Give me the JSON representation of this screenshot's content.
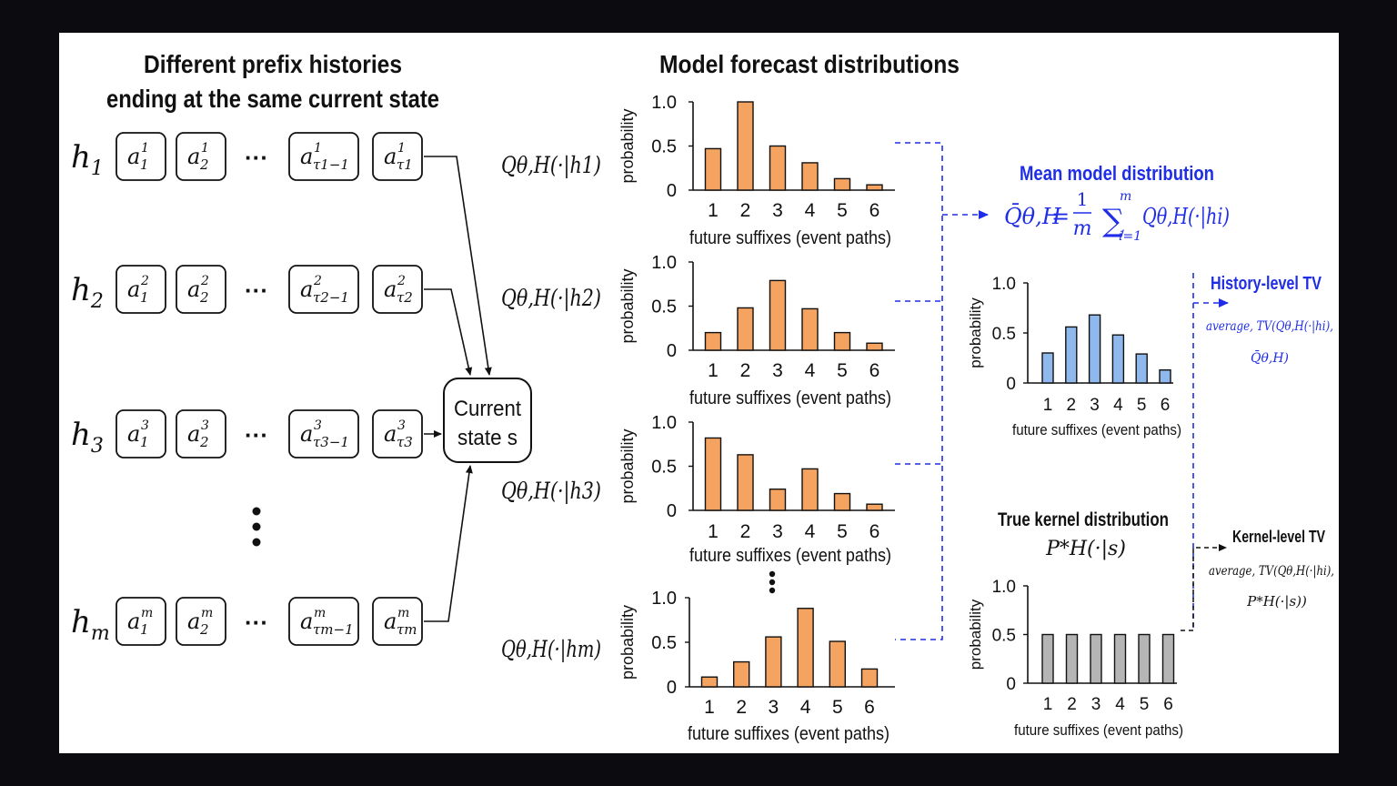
{
  "left_panel": {
    "title_line1": "Different prefix histories",
    "title_line2": "ending at the same current state",
    "histories": [
      {
        "label": "h",
        "sub": "1",
        "tokens": [
          {
            "base": "a",
            "sup": "1",
            "sub": "1"
          },
          {
            "base": "a",
            "sup": "1",
            "sub": "2"
          },
          {
            "base": "a",
            "sup": "1",
            "sub": "τ1−1"
          },
          {
            "base": "a",
            "sup": "1",
            "sub": "τ1"
          }
        ],
        "forecast": "Qθ,H(·|h1)"
      },
      {
        "label": "h",
        "sub": "2",
        "tokens": [
          {
            "base": "a",
            "sup": "2",
            "sub": "1"
          },
          {
            "base": "a",
            "sup": "2",
            "sub": "2"
          },
          {
            "base": "a",
            "sup": "2",
            "sub": "τ2−1"
          },
          {
            "base": "a",
            "sup": "2",
            "sub": "τ2"
          }
        ],
        "forecast": "Qθ,H(·|h2)"
      },
      {
        "label": "h",
        "sub": "3",
        "tokens": [
          {
            "base": "a",
            "sup": "3",
            "sub": "1"
          },
          {
            "base": "a",
            "sup": "3",
            "sub": "2"
          },
          {
            "base": "a",
            "sup": "3",
            "sub": "τ3−1"
          },
          {
            "base": "a",
            "sup": "3",
            "sub": "τ3"
          }
        ],
        "forecast": "Qθ,H(·|h3)"
      },
      {
        "label": "h",
        "sub": "m",
        "tokens": [
          {
            "base": "a",
            "sup": "m",
            "sub": "1"
          },
          {
            "base": "a",
            "sup": "m",
            "sub": "2"
          },
          {
            "base": "a",
            "sup": "m",
            "sub": "τm−1"
          },
          {
            "base": "a",
            "sup": "m",
            "sub": "τm"
          }
        ],
        "forecast": "Qθ,H(·|hm)"
      }
    ],
    "ellipsis": "···",
    "current_state_line1": "Current",
    "current_state_line2": "state s"
  },
  "middle_panel": {
    "title": "Model forecast distributions"
  },
  "right_panel": {
    "mean_title": "Mean model distribution",
    "mean_formula_lhs": "Q̄θ,H",
    "mean_formula_eq": "=",
    "mean_formula_frac_num": "1",
    "mean_formula_frac_den": "m",
    "mean_formula_sum": "∑",
    "mean_formula_sum_top": "m",
    "mean_formula_sum_bottom": "i=1",
    "mean_formula_term": "Qθ,H(·|hi)",
    "history_tv_title": "History-level TV",
    "history_tv_line1": "average, TV(Qθ,H(·|hi),",
    "history_tv_line2": "Q̄θ,H)",
    "kernel_title": "True kernel distribution",
    "kernel_formula": "P*H(·|s)",
    "kernel_tv_title": "Kernel-level TV",
    "kernel_tv_line1": "average, TV(Qθ,H(·|hi),",
    "kernel_tv_line2": "P*H(·|s))"
  },
  "colors": {
    "orange": "#f4a460",
    "blue": "#8fb8ec",
    "gray": "#b5b5b5",
    "accent_blue": "#1f2ee6",
    "ink": "#111111"
  },
  "chart_data": [
    {
      "type": "bar",
      "name_label": "history 1",
      "categories": [
        "1",
        "2",
        "3",
        "4",
        "5",
        "6"
      ],
      "values": [
        0.47,
        1.0,
        0.5,
        0.31,
        0.13,
        0.06
      ],
      "ylabel": "probability",
      "xlabel": "future suffixes (event paths)",
      "yticks": [
        "0",
        "0.5",
        "1.0"
      ],
      "ylim": [
        0,
        1.0
      ],
      "color": "#f4a460"
    },
    {
      "type": "bar",
      "name_label": "history 2",
      "categories": [
        "1",
        "2",
        "3",
        "4",
        "5",
        "6"
      ],
      "values": [
        0.2,
        0.48,
        0.79,
        0.47,
        0.2,
        0.08
      ],
      "ylabel": "probability",
      "xlabel": "future suffixes (event paths)",
      "yticks": [
        "0",
        "0.5",
        "1.0"
      ],
      "ylim": [
        0,
        1.0
      ],
      "color": "#f4a460"
    },
    {
      "type": "bar",
      "name_label": "history 3",
      "categories": [
        "1",
        "2",
        "3",
        "4",
        "5",
        "6"
      ],
      "values": [
        0.82,
        0.63,
        0.24,
        0.47,
        0.19,
        0.07
      ],
      "ylabel": "probability",
      "xlabel": "future suffixes (event paths)",
      "yticks": [
        "0",
        "0.5",
        "1.0"
      ],
      "ylim": [
        0,
        1.0
      ],
      "color": "#f4a460"
    },
    {
      "type": "bar",
      "name_label": "history m",
      "categories": [
        "1",
        "2",
        "3",
        "4",
        "5",
        "6"
      ],
      "values": [
        0.11,
        0.28,
        0.56,
        0.88,
        0.51,
        0.2
      ],
      "ylabel": "probability",
      "xlabel": "future suffixes (event paths)",
      "yticks": [
        "0",
        "0.5",
        "1.0"
      ],
      "ylim": [
        0,
        1.0
      ],
      "color": "#f4a460"
    },
    {
      "type": "bar",
      "name_label": "mean",
      "categories": [
        "1",
        "2",
        "3",
        "4",
        "5",
        "6"
      ],
      "values": [
        0.3,
        0.56,
        0.68,
        0.48,
        0.29,
        0.13
      ],
      "ylabel": "probability",
      "xlabel": "future suffixes (event paths)",
      "yticks": [
        "0",
        "0.5",
        "1.0"
      ],
      "ylim": [
        0,
        1.0
      ],
      "color": "#8fb8ec"
    },
    {
      "type": "bar",
      "name_label": "kernel",
      "categories": [
        "1",
        "2",
        "3",
        "4",
        "5",
        "6"
      ],
      "values": [
        0.5,
        0.5,
        0.5,
        0.5,
        0.5,
        0.5
      ],
      "ylabel": "probability",
      "xlabel": "future suffixes (event paths)",
      "yticks": [
        "0",
        "0.5",
        "1.0"
      ],
      "ylim": [
        0,
        1.0
      ],
      "color": "#b5b5b5"
    }
  ]
}
